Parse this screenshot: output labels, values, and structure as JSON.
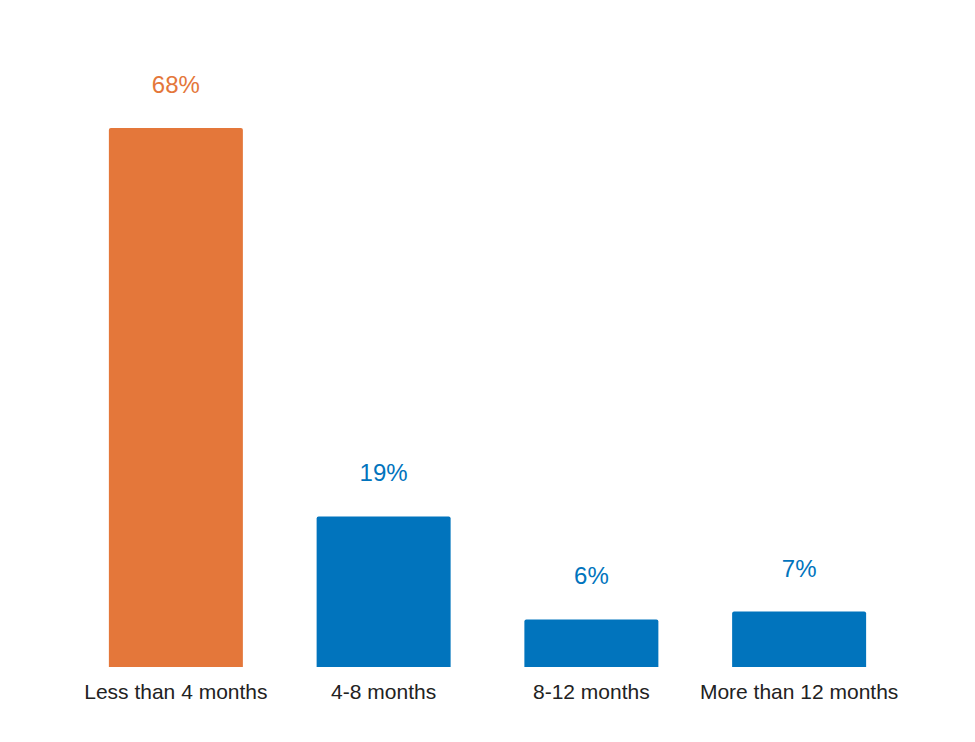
{
  "chart_data": {
    "type": "bar",
    "categories": [
      "Less than 4 months",
      "4-8 months",
      "8-12 months",
      "More than 12 months"
    ],
    "values": [
      68,
      19,
      6,
      7
    ],
    "value_labels": [
      "68%",
      "19%",
      "6%",
      "7%"
    ],
    "colors": [
      "#e4773a",
      "#0174bd",
      "#0174bd",
      "#0174bd"
    ],
    "ylim": [
      0,
      68
    ],
    "data_labels": true,
    "tick_labels": "x",
    "grid": false
  }
}
